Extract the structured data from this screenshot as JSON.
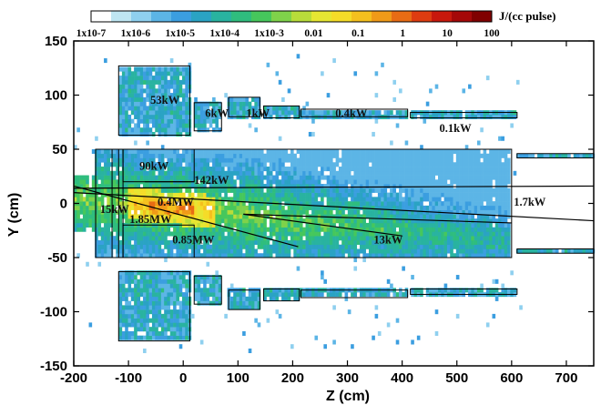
{
  "chart_data": {
    "type": "heatmap",
    "title": "",
    "xlabel": "Z (cm)",
    "ylabel": "Y (cm)",
    "xlim": [
      -200,
      750
    ],
    "ylim": [
      -150,
      150
    ],
    "x_ticks": [
      -200,
      -100,
      0,
      100,
      200,
      300,
      400,
      500,
      600,
      700
    ],
    "y_ticks": [
      -150,
      -100,
      -50,
      0,
      50,
      100,
      150
    ],
    "grid": false,
    "colorbar": {
      "unit_label": "J/(cc pulse)",
      "scale": "log",
      "tick_labels": [
        "1x10-7",
        "1x10-6",
        "1x10-5",
        "1x10-4",
        "1x10-3",
        "0.01",
        "0.1",
        "1",
        "10",
        "100"
      ],
      "colors": [
        "#ffffff",
        "#bfe6f2",
        "#8fd0ef",
        "#5cb5e6",
        "#3b9ee0",
        "#2aa3c4",
        "#29b3a0",
        "#2fbd7e",
        "#46c75c",
        "#7fd24a",
        "#b8dc3a",
        "#e6e632",
        "#f5dc28",
        "#f5c01e",
        "#f09a18",
        "#e86c14",
        "#de3c10",
        "#c8180c",
        "#a50808",
        "#800000"
      ]
    },
    "annotations": [
      {
        "text": "53kW",
        "x": -60,
        "y": 92
      },
      {
        "text": "6kW",
        "x": 40,
        "y": 80
      },
      {
        "text": "1kW",
        "x": 115,
        "y": 80
      },
      {
        "text": "0.4kW",
        "x": 278,
        "y": 80
      },
      {
        "text": "0.1kW",
        "x": 468,
        "y": 66
      },
      {
        "text": "90kW",
        "x": -80,
        "y": 31
      },
      {
        "text": "142kW",
        "x": 20,
        "y": 18
      },
      {
        "text": "0.4MW",
        "x": -47,
        "y": -2
      },
      {
        "text": "15kW",
        "x": -152,
        "y": -9
      },
      {
        "text": "1.85MW",
        "x": -98,
        "y": -18
      },
      {
        "text": "0.85MW",
        "x": -20,
        "y": -37
      },
      {
        "text": "13kW",
        "x": 348,
        "y": -37
      },
      {
        "text": "1.7kW",
        "x": 604,
        "y": -2
      }
    ]
  }
}
